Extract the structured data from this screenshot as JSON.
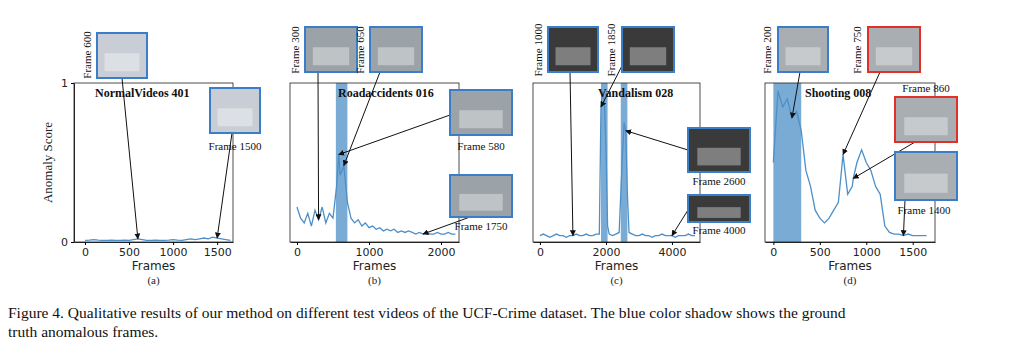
{
  "chart_data": [
    {
      "type": "line",
      "title": "NormalVideos 401",
      "caption": "(a)",
      "xlabel": "Frames",
      "ylabel": "Anomaly Score",
      "xlim": [
        -125,
        1680
      ],
      "ylim": [
        0,
        1
      ],
      "xticks": [
        0,
        500,
        1000,
        1500
      ],
      "yticks": [
        0,
        1
      ],
      "series": [
        {
          "color": "#4d8fc7",
          "x": [
            0,
            50,
            100,
            150,
            200,
            250,
            300,
            350,
            400,
            450,
            500,
            550,
            600,
            650,
            700,
            750,
            800,
            850,
            900,
            950,
            1000,
            1050,
            1100,
            1150,
            1200,
            1250,
            1300,
            1350,
            1400,
            1450,
            1500,
            1550,
            1600,
            1650
          ],
          "values": [
            0.01,
            0.012,
            0.015,
            0.012,
            0.01,
            0.01,
            0.012,
            0.01,
            0.01,
            0.012,
            0.01,
            0.015,
            0.02,
            0.015,
            0.01,
            0.01,
            0.012,
            0.01,
            0.01,
            0.012,
            0.015,
            0.012,
            0.01,
            0.015,
            0.02,
            0.015,
            0.02,
            0.025,
            0.02,
            0.03,
            0.025,
            0.02,
            0.015,
            0.01
          ]
        }
      ],
      "ground_truth": [],
      "annotations": [
        {
          "text": "Frame 600",
          "x": 600,
          "color": "#3a7dc9"
        },
        {
          "text": "Frame 1500",
          "x": 1500,
          "color": "#3a7dc9"
        }
      ]
    },
    {
      "type": "line",
      "title": "Roadaccidents 016",
      "caption": "(b)",
      "xlabel": "Frames",
      "tick_labels": "x",
      "xlim": [
        -97,
        2250
      ],
      "ylim": [
        0,
        1
      ],
      "xticks": [
        0,
        1000,
        2000
      ],
      "series": [
        {
          "color": "#4d8fc7",
          "x": [
            0,
            50,
            100,
            150,
            200,
            250,
            300,
            350,
            400,
            450,
            500,
            550,
            580,
            600,
            650,
            700,
            750,
            800,
            850,
            900,
            950,
            1000,
            1050,
            1100,
            1150,
            1200,
            1250,
            1300,
            1350,
            1400,
            1450,
            1500,
            1550,
            1600,
            1650,
            1700,
            1750,
            1800,
            1850,
            1900,
            1950,
            2000,
            2050,
            2100,
            2150,
            2200
          ],
          "values": [
            0.22,
            0.15,
            0.12,
            0.18,
            0.1,
            0.2,
            0.14,
            0.22,
            0.12,
            0.18,
            0.15,
            0.35,
            0.55,
            0.42,
            0.48,
            0.25,
            0.15,
            0.12,
            0.14,
            0.1,
            0.12,
            0.09,
            0.1,
            0.08,
            0.09,
            0.07,
            0.08,
            0.07,
            0.08,
            0.06,
            0.07,
            0.06,
            0.07,
            0.06,
            0.05,
            0.06,
            0.05,
            0.06,
            0.05,
            0.05,
            0.06,
            0.05,
            0.05,
            0.06,
            0.05,
            0.05
          ]
        }
      ],
      "ground_truth": [
        [
          540,
          700
        ]
      ],
      "annotations": [
        {
          "text": "Frame 300",
          "x": 300,
          "color": "#3a7dc9"
        },
        {
          "text": "Frame 650",
          "x": 650,
          "color": "#3a7dc9"
        },
        {
          "text": "Frame 580",
          "x": 580,
          "color": "#3a7dc9"
        },
        {
          "text": "Frame 1750",
          "x": 1750,
          "color": "#3a7dc9"
        }
      ]
    },
    {
      "type": "line",
      "title": "Vandalism 028",
      "caption": "(c)",
      "xlabel": "Frames",
      "tick_labels": "x",
      "xlim": [
        -210,
        4850
      ],
      "ylim": [
        0,
        1
      ],
      "xticks": [
        0,
        2000,
        4000
      ],
      "series": [
        {
          "color": "#4d8fc7",
          "x": [
            0,
            100,
            200,
            300,
            400,
            500,
            600,
            700,
            800,
            900,
            1000,
            1100,
            1200,
            1300,
            1400,
            1500,
            1600,
            1700,
            1800,
            1850,
            1900,
            1950,
            2000,
            2050,
            2100,
            2200,
            2300,
            2400,
            2500,
            2550,
            2600,
            2650,
            2700,
            2800,
            2900,
            3000,
            3100,
            3200,
            3300,
            3400,
            3500,
            3600,
            3700,
            3800,
            3900,
            4000,
            4100,
            4200,
            4300,
            4400,
            4500,
            4600,
            4700
          ],
          "values": [
            0.04,
            0.05,
            0.04,
            0.03,
            0.04,
            0.05,
            0.04,
            0.04,
            0.03,
            0.04,
            0.04,
            0.05,
            0.04,
            0.04,
            0.05,
            0.04,
            0.04,
            0.05,
            0.05,
            0.85,
            0.95,
            0.9,
            0.6,
            0.1,
            0.05,
            0.04,
            0.05,
            0.06,
            0.55,
            0.75,
            0.7,
            0.3,
            0.06,
            0.05,
            0.04,
            0.04,
            0.05,
            0.04,
            0.04,
            0.03,
            0.04,
            0.04,
            0.05,
            0.04,
            0.04,
            0.04,
            0.03,
            0.04,
            0.04,
            0.04,
            0.05,
            0.04,
            0.04
          ]
        }
      ],
      "ground_truth": [
        [
          1850,
          2050
        ],
        [
          2450,
          2650
        ]
      ],
      "annotations": [
        {
          "text": "Frame 1000",
          "x": 1000,
          "color": "#3a7dc9"
        },
        {
          "text": "Frame 1850",
          "x": 1850,
          "color": "#3a7dc9"
        },
        {
          "text": "Frame 2600",
          "x": 2600,
          "color": "#3a7dc9"
        },
        {
          "text": "Frame 4000",
          "x": 4000,
          "color": "#3a7dc9"
        }
      ]
    },
    {
      "type": "line",
      "title": "Shooting 008",
      "caption": "(d)",
      "xlabel": "Frames",
      "tick_labels": "x",
      "xlim": [
        -90,
        1740
      ],
      "ylim": [
        0,
        1
      ],
      "xticks": [
        0,
        500,
        1000,
        1500
      ],
      "series": [
        {
          "color": "#4d8fc7",
          "x": [
            0,
            50,
            100,
            150,
            200,
            250,
            300,
            350,
            400,
            450,
            500,
            550,
            600,
            650,
            700,
            750,
            800,
            850,
            860,
            900,
            950,
            1000,
            1050,
            1100,
            1150,
            1200,
            1250,
            1300,
            1350,
            1400,
            1450,
            1500,
            1550,
            1600,
            1650
          ],
          "values": [
            0.5,
            0.95,
            0.85,
            0.9,
            0.78,
            0.82,
            0.7,
            0.45,
            0.35,
            0.2,
            0.15,
            0.12,
            0.15,
            0.2,
            0.25,
            0.55,
            0.3,
            0.35,
            0.4,
            0.5,
            0.58,
            0.5,
            0.45,
            0.35,
            0.3,
            0.1,
            0.06,
            0.05,
            0.05,
            0.04,
            0.05,
            0.04,
            0.04,
            0.04,
            0.04
          ]
        }
      ],
      "ground_truth": [
        [
          0,
          300
        ]
      ],
      "annotations": [
        {
          "text": "Frame 200",
          "x": 200,
          "color": "#3a7dc9"
        },
        {
          "text": "Frame 750",
          "x": 750,
          "color": "#e0302a"
        },
        {
          "text": "Frame 860",
          "x": 860,
          "color": "#e0302a"
        },
        {
          "text": "Frame 1400",
          "x": 1400,
          "color": "#3a7dc9"
        }
      ]
    }
  ],
  "caption": [
    "Figure 4. Qualitative results of our method on different test videos of the UCF-Crime dataset. The blue color shadow shows the ground",
    "truth anomalous frames."
  ]
}
